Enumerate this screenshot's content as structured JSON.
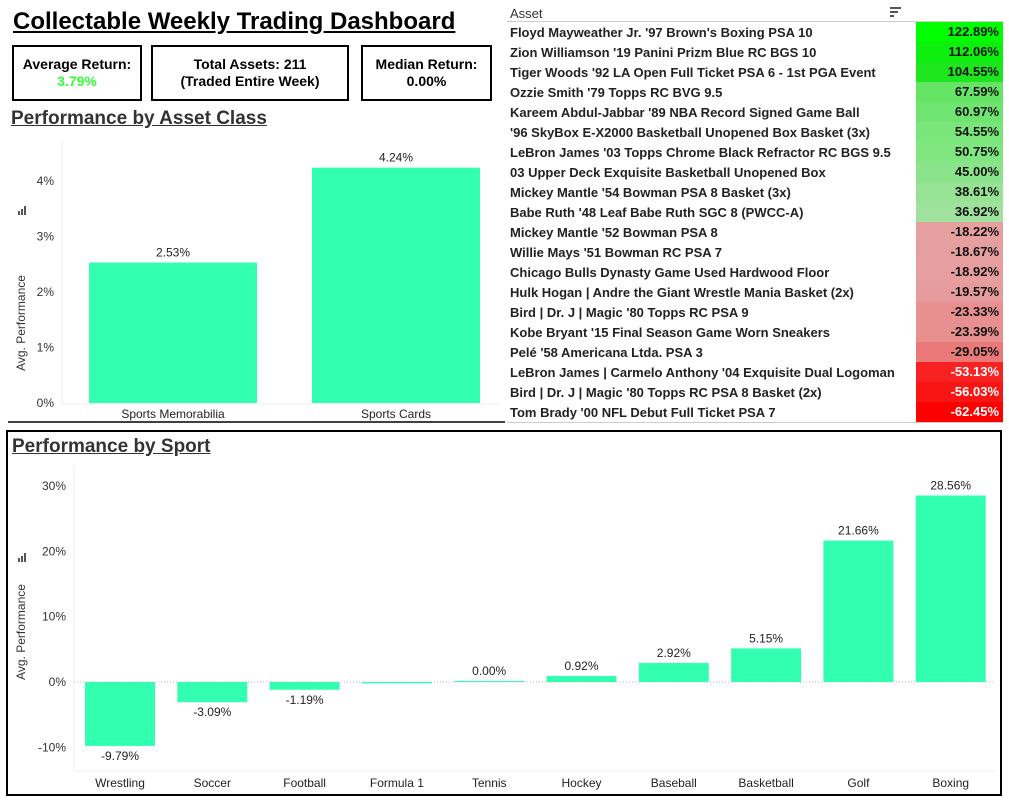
{
  "title": "Collectable Weekly Trading Dashboard",
  "kpis": {
    "avg_label": "Average Return:",
    "avg_value": "3.79%",
    "avg_color": "#33ff33",
    "total_line1": "Total Assets: 211",
    "total_line2": "(Traded Entire Week)",
    "median_label": "Median Return:",
    "median_value": "0.00%"
  },
  "table": {
    "header": "Asset",
    "sort_icon": "sort-descending-icon",
    "rows": [
      {
        "name": "Floyd Mayweather Jr. '97 Brown's Boxing PSA 10",
        "value": "122.89%",
        "color": "#00ff00"
      },
      {
        "name": "Zion Williamson '19 Panini Prizm Blue RC BGS 10",
        "value": "112.06%",
        "color": "#0eef0e"
      },
      {
        "name": "Tiger Woods '92 LA Open Full Ticket PSA 6 - 1st PGA Event",
        "value": "104.55%",
        "color": "#1ee61e"
      },
      {
        "name": "Ozzie Smith '79 Topps RC BVG 9.5",
        "value": "67.59%",
        "color": "#66e466"
      },
      {
        "name": "Kareem Abdul-Jabbar '89 NBA Record Signed Game Ball",
        "value": "60.97%",
        "color": "#70e470"
      },
      {
        "name": "'96 SkyBox E-X2000 Basketball Unopened Box Basket (3x)",
        "value": "54.55%",
        "color": "#7ae67a"
      },
      {
        "name": "LeBron James '03 Topps Chrome Black Refractor RC BGS 9.5",
        "value": "50.75%",
        "color": "#80e680"
      },
      {
        "name": "03 Upper Deck Exquisite Basketball Unopened Box",
        "value": "45.00%",
        "color": "#8be38b"
      },
      {
        "name": "Mickey Mantle '54 Bowman PSA 8 Basket (3x)",
        "value": "38.61%",
        "color": "#96e396"
      },
      {
        "name": "Babe Ruth '48 Leaf Babe Ruth SGC 8 (PWCC-A)",
        "value": "36.92%",
        "color": "#9ee29e"
      },
      {
        "name": "Mickey Mantle '52 Bowman PSA 8",
        "value": "-18.22%",
        "color": "#e6a0a0"
      },
      {
        "name": "Willie Mays '51 Bowman RC PSA 7",
        "value": "-18.67%",
        "color": "#e69f9f"
      },
      {
        "name": "Chicago Bulls Dynasty Game Used Hardwood Floor",
        "value": "-18.92%",
        "color": "#e69e9e"
      },
      {
        "name": "Hulk Hogan | Andre the Giant Wrestle Mania Basket (2x)",
        "value": "-19.57%",
        "color": "#e69c9c"
      },
      {
        "name": "Bird | Dr. J | Magic '80 Topps RC PSA 9",
        "value": "-23.33%",
        "color": "#e88f8f"
      },
      {
        "name": "Kobe Bryant '15 Final Season Game Worn Sneakers",
        "value": "-23.39%",
        "color": "#e88f8f"
      },
      {
        "name": "Pelé '58 Americana Ltda. PSA 3",
        "value": "-29.05%",
        "color": "#ea7a7a"
      },
      {
        "name": "LeBron James | Carmelo Anthony '04 Exquisite Dual Logoman",
        "value": "-53.13%",
        "color": "#f82222"
      },
      {
        "name": "Bird | Dr. J | Magic '80 Topps RC PSA 8 Basket (2x)",
        "value": "-56.03%",
        "color": "#fa1515"
      },
      {
        "name": "Tom Brady '00 NFL Debut Full Ticket PSA 7",
        "value": "-62.45%",
        "color": "#ff0000"
      }
    ]
  },
  "chart_data": [
    {
      "type": "bar",
      "title": "Performance by Asset Class",
      "ylabel": "Avg. Performance",
      "xlabel": "",
      "categories": [
        "Sports Memorabilia",
        "Sports Cards"
      ],
      "values": [
        2.53,
        4.24
      ],
      "labels": [
        "2.53%",
        "4.24%"
      ],
      "yticks": [
        "0%",
        "1%",
        "2%",
        "3%",
        "4%"
      ],
      "ylim": [
        0,
        4.5
      ],
      "bar_color": "#33ffb0"
    },
    {
      "type": "bar",
      "title": "Performance by Sport",
      "ylabel": "Avg. Performance",
      "xlabel": "",
      "categories": [
        "Wrestling",
        "Soccer",
        "Football",
        "Formula 1",
        "Tennis",
        "Hockey",
        "Baseball",
        "Basketball",
        "Golf",
        "Boxing"
      ],
      "values": [
        -9.79,
        -3.09,
        -1.19,
        -0.2,
        0.0,
        0.92,
        2.92,
        5.15,
        21.66,
        28.56
      ],
      "labels": [
        "-9.79%",
        "-3.09%",
        "-1.19%",
        "",
        "0.00%",
        "0.92%",
        "2.92%",
        "5.15%",
        "21.66%",
        "28.56%"
      ],
      "yticks": [
        "-10%",
        "0%",
        "10%",
        "20%",
        "30%"
      ],
      "ylim": [
        -14,
        32
      ],
      "bar_color": "#33ffb0"
    }
  ]
}
